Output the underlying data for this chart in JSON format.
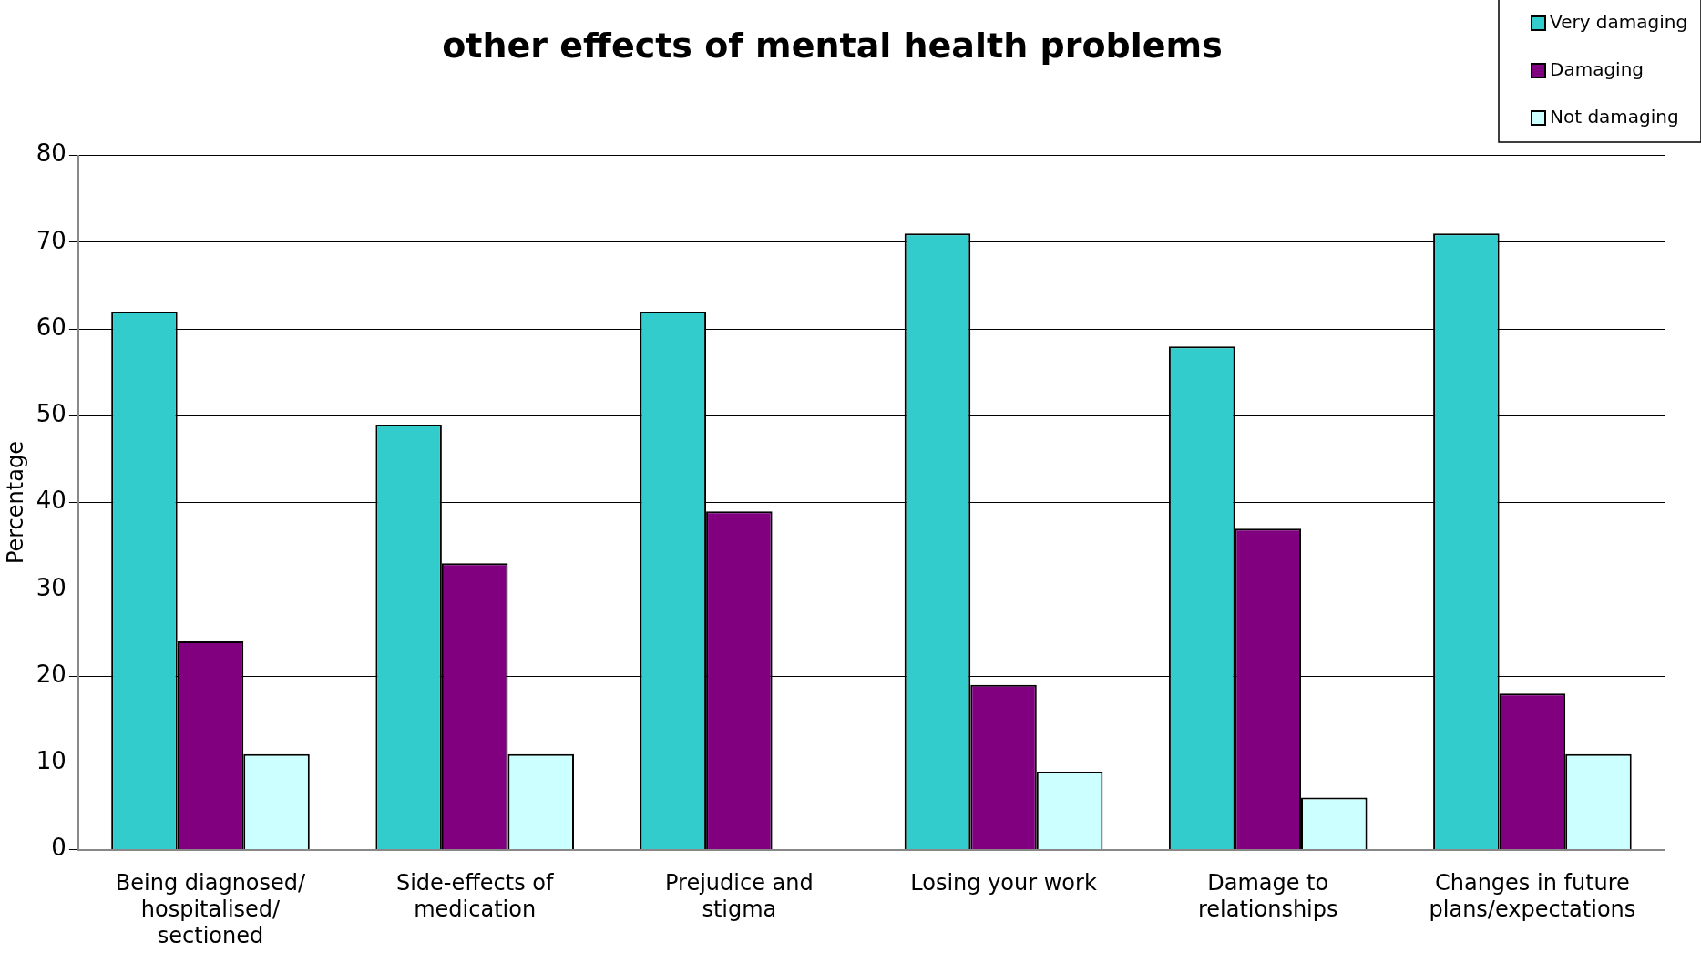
{
  "chart_data": {
    "type": "bar",
    "title": "other effects of mental health problems",
    "ylabel": "Percentage",
    "categories": [
      "Being diagnosed/ hospitalised/ sectioned",
      "Side-effects of medication",
      "Prejudice and stigma",
      "Losing your work",
      "Damage to relationships",
      "Changes in future plans/expectations"
    ],
    "series": [
      {
        "name": "Very damaging",
        "color": "#33cccc",
        "values": [
          62,
          49,
          62,
          71,
          58,
          71
        ]
      },
      {
        "name": "Damaging",
        "color": "#800080",
        "values": [
          24,
          33,
          39,
          19,
          37,
          18
        ]
      },
      {
        "name": "Not damaging",
        "color": "#ccffff",
        "values": [
          11,
          11,
          null,
          9,
          6,
          11
        ]
      }
    ],
    "ylim": [
      0,
      80
    ],
    "yticks": [
      0,
      10,
      20,
      30,
      40,
      50,
      60,
      70,
      80
    ],
    "grid": "y",
    "legend": "top right"
  }
}
